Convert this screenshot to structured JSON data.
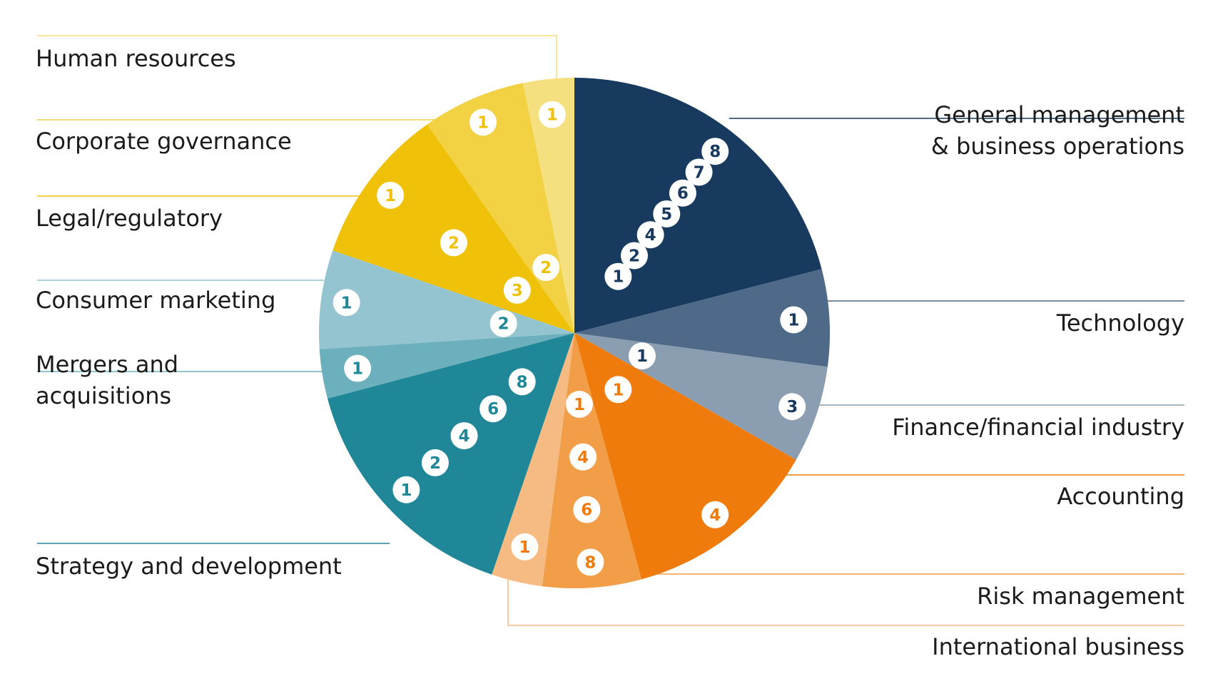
{
  "chart_data": {
    "type": "pie",
    "title": "",
    "legend": "none",
    "slices": [
      {
        "name": "General management & business operations",
        "lines": [
          "General management",
          "& business operations"
        ],
        "value": 20.8,
        "color": "#173a5e",
        "badge_color": "#173a5e",
        "badges": [
          "1",
          "2",
          "4",
          "5",
          "6",
          "7",
          "8"
        ]
      },
      {
        "name": "Technology",
        "lines": [
          "Technology"
        ],
        "value": 6.1,
        "color": "#4e6a88",
        "badge_color": "#173a5e",
        "badges": [
          "1"
        ]
      },
      {
        "name": "Finance/financial industry",
        "lines": [
          "Finance/financial industry"
        ],
        "value": 6.1,
        "color": "#8a9db1",
        "badge_color": "#173a5e",
        "badges": [
          "1",
          "3"
        ]
      },
      {
        "name": "Accounting",
        "lines": [
          "Accounting"
        ],
        "value": 12.4,
        "color": "#ef7b0d",
        "badge_color": "#ef7b0d",
        "badges": [
          "1",
          "4"
        ]
      },
      {
        "name": "Risk management",
        "lines": [
          "Risk management"
        ],
        "value": 6.2,
        "color": "#f29e48",
        "badge_color": "#ef7b0d",
        "badges": [
          "1",
          "4",
          "6",
          "8"
        ]
      },
      {
        "name": "International business",
        "lines": [
          "International business"
        ],
        "value": 3.2,
        "color": "#f6bb82",
        "badge_color": "#ef7b0d",
        "badges": [
          "1"
        ]
      },
      {
        "name": "Strategy and development",
        "lines": [
          "Strategy and development"
        ],
        "value": 15.5,
        "color": "#1f8797",
        "badge_color": "#1f8797",
        "badges": [
          "8",
          "6",
          "4",
          "2",
          "1"
        ]
      },
      {
        "name": "Mergers and acquisitions",
        "lines": [
          "Mergers and",
          "acquisitions"
        ],
        "value": 3.1,
        "color": "#6db0bd",
        "badge_color": "#1f8797",
        "badges": [
          "1"
        ]
      },
      {
        "name": "Consumer marketing",
        "lines": [
          "Consumer marketing"
        ],
        "value": 6.2,
        "color": "#93c4cf",
        "badge_color": "#1f8797",
        "badges": [
          "2",
          "1"
        ]
      },
      {
        "name": "Legal/regulatory",
        "lines": [
          "Legal/regulatory"
        ],
        "value": 9.9,
        "color": "#efc209",
        "badge_color": "#efc209",
        "badges": [
          "3",
          "2",
          "1"
        ]
      },
      {
        "name": "Corporate governance",
        "lines": [
          "Corporate governance"
        ],
        "value": 6.5,
        "color": "#f2d143",
        "badge_color": "#efc209",
        "badges": [
          "2",
          "1"
        ]
      },
      {
        "name": "Human resources",
        "lines": [
          "Human resources"
        ],
        "value": 3.2,
        "color": "#f5e07f",
        "badge_color": "#efc209",
        "badges": [
          "1"
        ]
      }
    ]
  }
}
